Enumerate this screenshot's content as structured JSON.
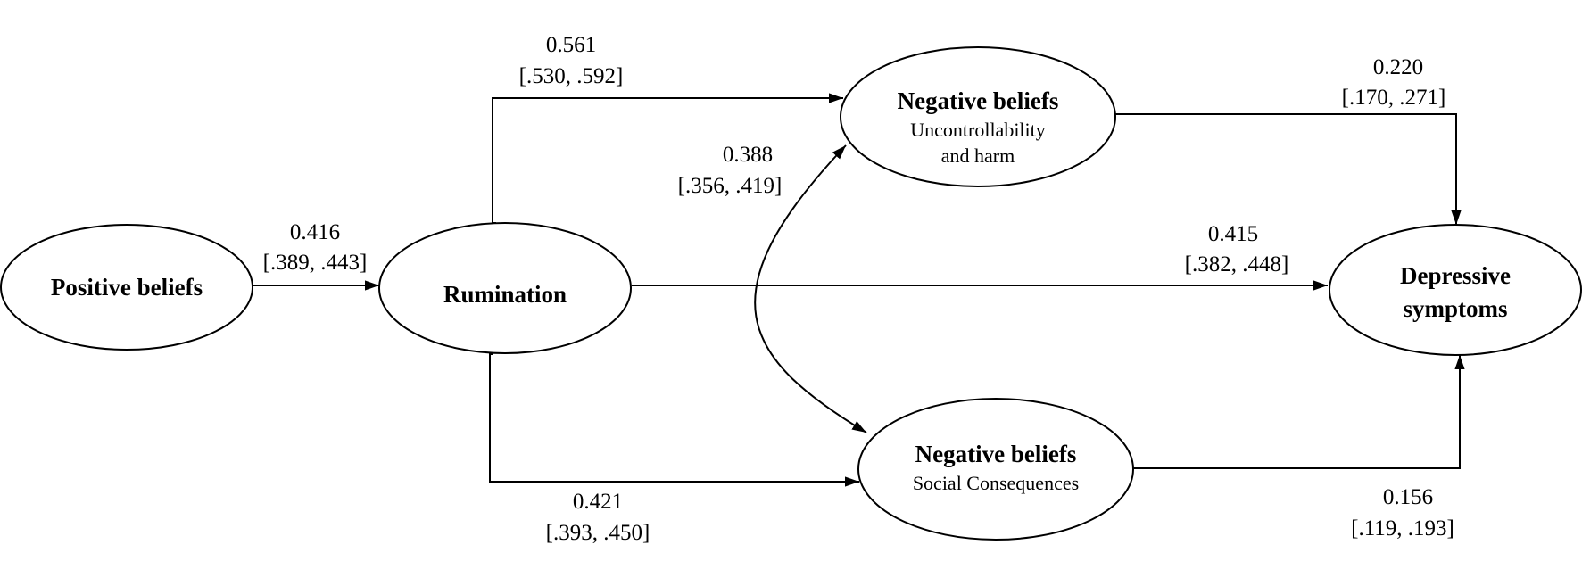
{
  "nodes": {
    "positive": {
      "title": "Positive beliefs"
    },
    "rumination": {
      "title": "Rumination"
    },
    "neg_uncontrol": {
      "title": "Negative beliefs",
      "subtitle_1": "Uncontrollability",
      "subtitle_2": "and harm"
    },
    "neg_social": {
      "title": "Negative beliefs",
      "subtitle": "Social Consequences"
    },
    "depressive": {
      "title_1": "Depressive",
      "title_2": "symptoms"
    }
  },
  "paths": {
    "positive_to_rumination": {
      "estimate": "0.416",
      "ci": "[.389, .443]"
    },
    "rumination_to_uncontrol": {
      "estimate": "0.561",
      "ci": "[.530, .592]"
    },
    "neg_beliefs_covariance": {
      "estimate": "0.388",
      "ci": "[.356, .419]"
    },
    "rumination_to_depressive": {
      "estimate": "0.415",
      "ci": "[.382, .448]"
    },
    "uncontrol_to_depressive": {
      "estimate": "0.220",
      "ci": "[.170, .271]"
    },
    "rumination_to_social": {
      "estimate": "0.421",
      "ci": "[.393, .450]"
    },
    "social_to_depressive": {
      "estimate": "0.156",
      "ci": "[.119, .193]"
    }
  }
}
